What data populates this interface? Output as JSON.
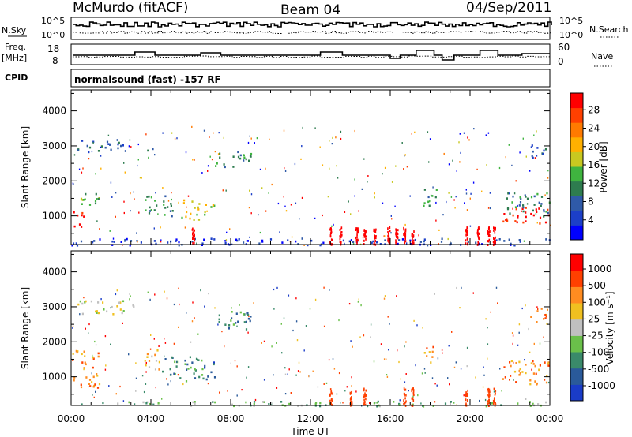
{
  "header": {
    "station": "McMurdo (fitACF)",
    "beam": "Beam 04",
    "date": "04/Sep/2011"
  },
  "strip_panels": {
    "nsky_label": "N.Sky",
    "nsky_ticks": [
      "10^5",
      "10^0"
    ],
    "nsearch_label": "N.Search",
    "nsearch_ticks": [
      "10^5",
      "10^0"
    ],
    "freq_label_line1": "Freq.",
    "freq_label_line2": "[MHz]",
    "freq_ticks": [
      "18",
      "8"
    ],
    "nave_label": "Nave",
    "nave_ticks": [
      "60",
      "0"
    ],
    "cpid_label": "CPID",
    "cpid_text": "normalsound (fast) -157 RF"
  },
  "chart_data": [
    {
      "type": "heatmap",
      "name": "power",
      "ylabel": "Slant Range [km]",
      "yticks": [
        1000,
        2000,
        3000,
        4000
      ],
      "ylim": [
        180,
        4600
      ],
      "xlim": [
        0,
        24
      ],
      "colorbar": {
        "label": "Power [dB]",
        "ticks": [
          "4",
          "8",
          "12",
          "16",
          "20",
          "24",
          "28"
        ],
        "colors": [
          "#0000ff",
          "#1c3fc8",
          "#2f5aa8",
          "#2e7c4f",
          "#3fb43f",
          "#c8c820",
          "#ffb000",
          "#ff7a00",
          "#ff4000",
          "#ff0000"
        ]
      },
      "regions": [
        {
          "t0": 0.0,
          "t1": 0.6,
          "r0": 600,
          "r1": 1200,
          "level": 9
        },
        {
          "t0": 0.2,
          "t1": 1.4,
          "r0": 1300,
          "r1": 1800,
          "level": 4
        },
        {
          "t0": 0.3,
          "t1": 2.8,
          "r0": 2800,
          "r1": 3200,
          "level": 2
        },
        {
          "t0": 3.6,
          "t1": 4.4,
          "r0": 1100,
          "r1": 1800,
          "level": 3
        },
        {
          "t0": 3.7,
          "t1": 4.2,
          "r0": 2800,
          "r1": 3000,
          "level": 2
        },
        {
          "t0": 4.4,
          "t1": 5.2,
          "r0": 1000,
          "r1": 1600,
          "level": 3
        },
        {
          "t0": 5.3,
          "t1": 6.4,
          "r0": 900,
          "r1": 1500,
          "level": 5
        },
        {
          "t0": 6.5,
          "t1": 7.2,
          "r0": 1000,
          "r1": 1400,
          "level": 5
        },
        {
          "t0": 7.2,
          "t1": 9.0,
          "r0": 2400,
          "r1": 2900,
          "level": 3
        },
        {
          "t0": 17.6,
          "t1": 18.3,
          "r0": 1300,
          "r1": 1900,
          "level": 3
        },
        {
          "t0": 21.6,
          "t1": 24.0,
          "r0": 800,
          "r1": 1300,
          "level": 9
        },
        {
          "t0": 21.8,
          "t1": 24.0,
          "r0": 1000,
          "r1": 1700,
          "level": 3
        },
        {
          "t0": 0.0,
          "t1": 24.0,
          "r0": 180,
          "r1": 380,
          "level": 1
        },
        {
          "t0": 23.0,
          "t1": 24.0,
          "r0": 2600,
          "r1": 3100,
          "level": 2
        }
      ],
      "spikes": [
        6.1,
        13.0,
        13.5,
        14.3,
        14.7,
        15.2,
        15.9,
        16.3,
        16.7,
        17.1,
        19.8,
        20.4,
        20.9,
        21.2
      ],
      "spike_level": 9
    },
    {
      "type": "heatmap",
      "name": "velocity",
      "ylabel": "Slant Range [km]",
      "yticks": [
        1000,
        2000,
        3000,
        4000
      ],
      "ylim": [
        180,
        4600
      ],
      "xlim": [
        0,
        24
      ],
      "xticks": [
        "00:00",
        "04:00",
        "08:00",
        "12:00",
        "16:00",
        "20:00",
        "00:00"
      ],
      "xlabel": "Time UT",
      "colorbar": {
        "label": "Velocity [m s⁻¹]",
        "ticks": [
          "1000",
          "500",
          "100",
          "25",
          "-25",
          "-100",
          "-500",
          "-1000"
        ],
        "colors": [
          "#1a3cc8",
          "#2a5a9a",
          "#3a8a6a",
          "#6ac04a",
          "#c0c0c0",
          "#f0c020",
          "#ff8c20",
          "#ff4000",
          "#ff0000"
        ]
      },
      "regions": [
        {
          "t0": 0.0,
          "t1": 1.4,
          "r0": 700,
          "r1": 1800,
          "level": 6
        },
        {
          "t0": 0.3,
          "t1": 3.2,
          "r0": 2800,
          "r1": 3200,
          "level": 4
        },
        {
          "t0": 3.6,
          "t1": 4.4,
          "r0": 1100,
          "r1": 1800,
          "level": 5
        },
        {
          "t0": 4.4,
          "t1": 6.6,
          "r0": 900,
          "r1": 1600,
          "level": 2
        },
        {
          "t0": 6.6,
          "t1": 7.2,
          "r0": 900,
          "r1": 1500,
          "level": 1
        },
        {
          "t0": 7.2,
          "t1": 9.0,
          "r0": 2300,
          "r1": 2900,
          "level": 2
        },
        {
          "t0": 17.6,
          "t1": 18.3,
          "r0": 1400,
          "r1": 1900,
          "level": 6
        },
        {
          "t0": 21.6,
          "t1": 24.0,
          "r0": 800,
          "r1": 1500,
          "level": 6
        },
        {
          "t0": 0.0,
          "t1": 24.0,
          "r0": 180,
          "r1": 320,
          "level": 3
        },
        {
          "t0": 23.0,
          "t1": 24.0,
          "r0": 2500,
          "r1": 3000,
          "level": 6
        }
      ],
      "spikes": [
        13.0,
        14.0,
        14.7,
        16.7,
        17.1,
        19.8,
        20.9,
        21.2
      ],
      "spike_level": 7
    }
  ],
  "axis_colors": {
    "frame": "#000000",
    "background": "#ffffff"
  }
}
